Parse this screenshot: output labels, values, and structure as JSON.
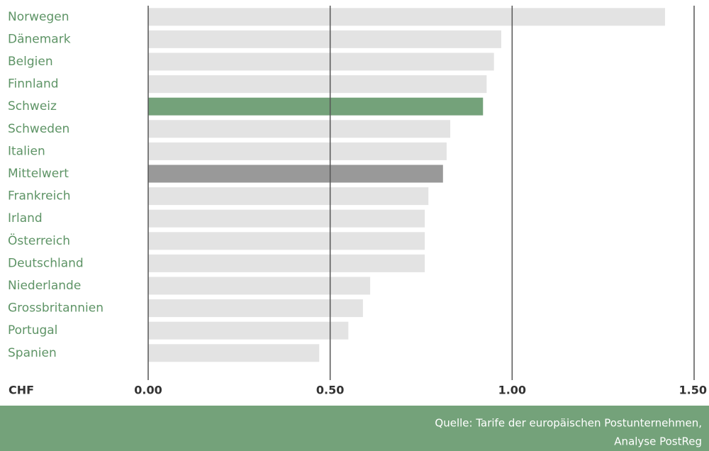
{
  "chart_data": {
    "type": "bar",
    "orientation": "horizontal",
    "categories": [
      "Norwegen",
      "Dänemark",
      "Belgien",
      "Finnland",
      "Schweiz",
      "Schweden",
      "Italien",
      "Mittelwert",
      "Frankreich",
      "Irland",
      "Österreich",
      "Deutschland",
      "Niederlande",
      "Grossbritannien",
      "Portugal",
      "Spanien"
    ],
    "values": [
      1.42,
      0.97,
      0.95,
      0.93,
      0.92,
      0.83,
      0.82,
      0.81,
      0.77,
      0.76,
      0.76,
      0.76,
      0.61,
      0.59,
      0.55,
      0.47
    ],
    "colors": [
      "#e3e3e3",
      "#e3e3e3",
      "#e3e3e3",
      "#e3e3e3",
      "#74a27a",
      "#e3e3e3",
      "#e3e3e3",
      "#999999",
      "#e3e3e3",
      "#e3e3e3",
      "#e3e3e3",
      "#e3e3e3",
      "#e3e3e3",
      "#e3e3e3",
      "#e3e3e3",
      "#e3e3e3"
    ],
    "xlabel": "CHF",
    "xlim": [
      0,
      1.5
    ],
    "xticks": [
      {
        "value": 0,
        "label": "0.00"
      },
      {
        "value": 0.5,
        "label": "0.50"
      },
      {
        "value": 1,
        "label": "1.00"
      },
      {
        "value": 1.5,
        "label": "1.50"
      }
    ],
    "grid": true,
    "source": [
      "Quelle: Tarife der europäischen Postunternehmen,",
      "Analyse PostReg"
    ]
  }
}
